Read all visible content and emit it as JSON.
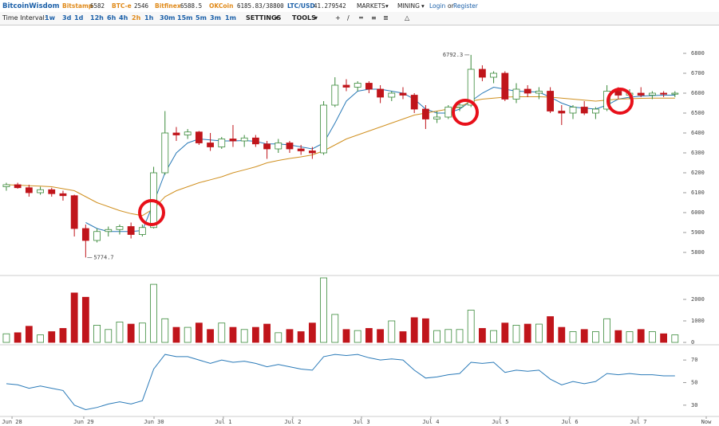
{
  "header": {
    "brand": "BitcoinWisdom",
    "tickers": [
      {
        "name": "Bitstamp",
        "price": "6582"
      },
      {
        "name": "BTC-e",
        "price": "2546"
      },
      {
        "name": "Bitfinex",
        "price": "6588.5"
      },
      {
        "name": "OKCoin",
        "price": "6185.83/38800"
      },
      {
        "name": "LTC/USD",
        "price": "41.279542"
      }
    ],
    "menus": [
      "MARKETS",
      "MINING"
    ],
    "login": "Login",
    "or": "or",
    "register": "Register"
  },
  "toolbar": {
    "label": "Time Interval:",
    "intervals": [
      "1w",
      "3d",
      "1d",
      "12h",
      "6h",
      "4h",
      "2h",
      "1h",
      "30m",
      "15m",
      "5m",
      "3m",
      "1m"
    ],
    "settings": "SETTINGS",
    "tools": "TOOLS"
  },
  "chart_data": {
    "type": "candlestick",
    "open": [
      6130,
      6140,
      6125,
      6100,
      6115,
      6095,
      6085,
      5920,
      5860,
      5905,
      5915,
      5930,
      5890,
      5925,
      6200,
      6400,
      6390,
      6405,
      6350,
      6330,
      6370,
      6360,
      6375,
      6345,
      6320,
      6350,
      6320,
      6310,
      6300,
      6540,
      6640,
      6630,
      6650,
      6620,
      6580,
      6600,
      6590,
      6520,
      6470,
      6480,
      6530,
      6540,
      6720,
      6680,
      6700,
      6570,
      6620,
      6600,
      6610,
      6510,
      6500,
      6530,
      6500,
      6520,
      6610,
      6590,
      6600,
      6590,
      6600,
      6595
    ],
    "high": [
      6150,
      6150,
      6140,
      6130,
      6125,
      6110,
      6090,
      5940,
      5920,
      5930,
      5940,
      5950,
      5940,
      6230,
      6510,
      6430,
      6420,
      6410,
      6400,
      6380,
      6440,
      6390,
      6390,
      6360,
      6370,
      6360,
      6340,
      6330,
      6560,
      6680,
      6670,
      6660,
      6660,
      6640,
      6610,
      6630,
      6600,
      6540,
      6510,
      6540,
      6560,
      6792.3,
      6740,
      6710,
      6710,
      6650,
      6640,
      6630,
      6630,
      6540,
      6540,
      6560,
      6530,
      6640,
      6630,
      6620,
      6630,
      6610,
      6610,
      6610
    ],
    "low": [
      6110,
      6120,
      6080,
      6090,
      6080,
      6060,
      5880,
      5774.7,
      5850,
      5880,
      5890,
      5870,
      5880,
      5920,
      6190,
      6360,
      6370,
      6340,
      6310,
      6320,
      6330,
      6330,
      6330,
      6270,
      6300,
      6300,
      6290,
      6270,
      6290,
      6530,
      6610,
      6610,
      6600,
      6550,
      6560,
      6570,
      6500,
      6420,
      6450,
      6470,
      6510,
      6530,
      6660,
      6650,
      6560,
      6550,
      6580,
      6570,
      6500,
      6440,
      6470,
      6490,
      6470,
      6510,
      6570,
      6570,
      6580,
      6570,
      6580,
      6580
    ],
    "close": [
      6140,
      6125,
      6100,
      6115,
      6095,
      6085,
      5920,
      5860,
      5905,
      5915,
      5930,
      5890,
      5925,
      6200,
      6400,
      6390,
      6405,
      6350,
      6330,
      6370,
      6360,
      6375,
      6345,
      6320,
      6350,
      6320,
      6310,
      6300,
      6540,
      6640,
      6630,
      6650,
      6620,
      6580,
      6600,
      6590,
      6520,
      6470,
      6480,
      6530,
      6540,
      6720,
      6680,
      6700,
      6570,
      6620,
      6600,
      6610,
      6510,
      6500,
      6530,
      6500,
      6520,
      6610,
      6590,
      6600,
      6590,
      6600,
      6595,
      6600
    ],
    "up_color": "#3a8a3a",
    "down_color": "#c0151b",
    "ma": [
      {
        "color": "#2a7ab8",
        "values": [
          null,
          null,
          null,
          null,
          null,
          null,
          null,
          5950,
          5920,
          5905,
          5905,
          5905,
          5910,
          6050,
          6200,
          6300,
          6350,
          6370,
          6365,
          6360,
          6360,
          6362,
          6358,
          6345,
          6345,
          6340,
          6330,
          6320,
          6350,
          6450,
          6560,
          6610,
          6620,
          6620,
          6610,
          6600,
          6570,
          6520,
          6500,
          6500,
          6520,
          6560,
          6600,
          6630,
          6620,
          6610,
          6608,
          6605,
          6580,
          6550,
          6530,
          6525,
          6520,
          6540,
          6570,
          6580,
          6585,
          6588,
          6590,
          6590
        ]
      },
      {
        "color": "#d09020",
        "values": [
          6140,
          6138,
          6135,
          6133,
          6130,
          6120,
          6110,
          6080,
          6050,
          6030,
          6010,
          5995,
          5985,
          6020,
          6080,
          6110,
          6130,
          6150,
          6165,
          6180,
          6200,
          6215,
          6230,
          6250,
          6262,
          6272,
          6280,
          6290,
          6310,
          6340,
          6370,
          6390,
          6410,
          6430,
          6450,
          6470,
          6490,
          6500,
          6510,
          6520,
          6530,
          6560,
          6570,
          6575,
          6580,
          6582,
          6582,
          6582,
          6580,
          6575,
          6570,
          6565,
          6560,
          6565,
          6570,
          6572,
          6574,
          6575,
          6575,
          6575
        ]
      }
    ],
    "high_label": 6792.3,
    "low_label": 5774.7,
    "ylim": [
      5688,
      6928
    ],
    "yticks": [
      5800,
      5900,
      6000,
      6100,
      6200,
      6300,
      6400,
      6500,
      6600,
      6700,
      6800
    ],
    "volume": [
      400,
      450,
      750,
      350,
      500,
      650,
      2300,
      2100,
      800,
      600,
      950,
      850,
      900,
      2700,
      1100,
      700,
      700,
      900,
      600,
      900,
      700,
      600,
      700,
      850,
      450,
      600,
      500,
      900,
      3000,
      1300,
      600,
      550,
      650,
      600,
      1000,
      500,
      1150,
      1100,
      550,
      600,
      600,
      1500,
      650,
      550,
      900,
      800,
      850,
      850,
      1200,
      700,
      500,
      600,
      500,
      1100,
      550,
      500,
      600,
      500,
      400,
      350
    ],
    "vol_ylim": [
      0,
      3074
    ],
    "vol_yticks": [
      0,
      1000,
      2000
    ],
    "rsi": [
      49,
      48,
      45,
      47,
      45,
      43,
      30,
      26,
      28,
      31,
      33,
      31,
      34,
      62,
      75,
      73,
      73,
      70,
      67,
      70,
      68,
      69,
      67,
      64,
      66,
      64,
      62,
      61,
      73,
      75,
      74,
      75,
      72,
      70,
      71,
      70,
      61,
      54,
      55,
      57,
      58,
      68,
      67,
      68,
      59,
      61,
      60,
      61,
      53,
      48,
      51,
      49,
      51,
      58,
      57,
      58,
      57,
      57,
      56,
      56
    ],
    "rsi_color": "#2a7ab8",
    "rsi_ylim": [
      20.7,
      82.1
    ],
    "rsi_yticks": [
      30,
      50,
      70
    ],
    "xlim": [
      -0.56,
      61.76
    ],
    "xticks": [
      {
        "value": 0.5,
        "label": "Jun 28"
      },
      {
        "value": 6.83,
        "label": "Jun 29"
      },
      {
        "value": 13.03,
        "label": "Jun 30"
      },
      {
        "value": 19.15,
        "label": "Jul 1"
      },
      {
        "value": 25.28,
        "label": "Jul 2"
      },
      {
        "value": 31.34,
        "label": "Jul 3"
      },
      {
        "value": 37.46,
        "label": "Jul 4"
      },
      {
        "value": 43.59,
        "label": "Jul 5"
      },
      {
        "value": 49.72,
        "label": "Jul 6"
      },
      {
        "value": 55.77,
        "label": "Jul 7"
      },
      {
        "value": 61.76,
        "label": "Now"
      }
    ]
  }
}
